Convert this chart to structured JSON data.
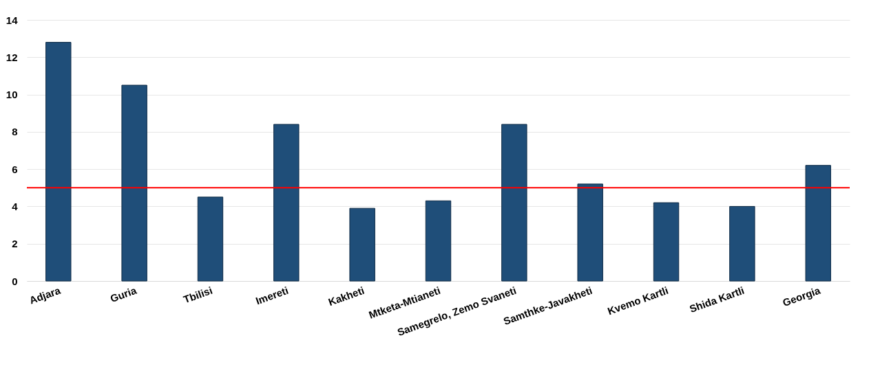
{
  "chart_data": {
    "type": "bar",
    "categories": [
      "Adjara",
      "Guria",
      "Tbilisi",
      "Imereti",
      "Kakheti",
      "Mtketa-Mtianeti",
      "Samegrelo, Zemo Svaneti",
      "Samthke-Javakheti",
      "Kvemo Kartli",
      "Shida Kartli",
      "Georgia"
    ],
    "values": [
      12.8,
      10.5,
      4.5,
      8.4,
      3.9,
      4.3,
      8.4,
      5.2,
      4.2,
      4.0,
      6.2
    ],
    "color": "#1f4e79",
    "ylim": [
      0,
      14
    ],
    "yticks": [
      0,
      2,
      4,
      6,
      8,
      10,
      12,
      14
    ],
    "grid": "y",
    "ref_lines": [
      {
        "axis": "y",
        "value": 5,
        "color": "#ff0000"
      }
    ]
  }
}
